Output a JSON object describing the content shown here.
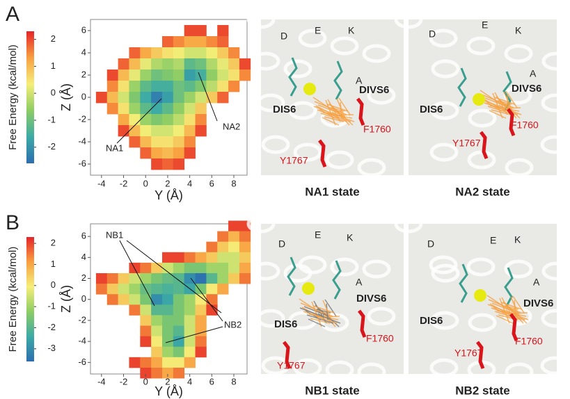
{
  "panels": [
    {
      "label": "A",
      "colorbar": {
        "title": "Free Energy (kcal/mol)",
        "clim": [
          -2.6,
          2.3
        ],
        "ticks": [
          2,
          1,
          0,
          -1,
          -2
        ]
      },
      "plot": {
        "xlabel": "Y (Å)",
        "ylabel": "Z (Å)",
        "xlim": [
          -5,
          9.2
        ],
        "ylim": [
          -7,
          7
        ],
        "xticks": [
          -4,
          -2,
          0,
          2,
          4,
          6,
          8
        ],
        "yticks": [
          -6,
          -4,
          -2,
          0,
          2,
          4,
          6
        ],
        "y_centers": [
          -4,
          -3,
          -2,
          -1,
          0,
          1,
          2,
          3,
          4,
          5,
          6,
          7,
          8,
          9
        ],
        "z_centers": [
          6,
          5,
          4,
          3,
          2,
          1,
          0,
          -1,
          -2,
          -3,
          -4,
          -5,
          -6
        ],
        "values": [
          [
            null,
            null,
            null,
            null,
            null,
            null,
            null,
            null,
            2,
            2,
            null,
            2,
            null,
            null
          ],
          [
            null,
            null,
            null,
            null,
            null,
            null,
            1.8,
            1.5,
            1.2,
            1.2,
            1.5,
            1.8,
            null,
            null
          ],
          [
            null,
            null,
            null,
            1.8,
            1.2,
            0.8,
            0.5,
            0.3,
            0,
            0,
            0.3,
            0.8,
            1.5,
            null
          ],
          [
            null,
            null,
            1.8,
            1,
            0.2,
            -0.3,
            -0.5,
            -0.3,
            -1.2,
            -1,
            -0.3,
            0.2,
            0.8,
            2
          ],
          [
            null,
            2,
            1,
            0.2,
            -0.5,
            -1,
            -0.8,
            -0.6,
            -1.8,
            -1.5,
            -0.6,
            0,
            0.5,
            1.5
          ],
          [
            null,
            1.5,
            0.5,
            -0.5,
            -1.2,
            -1.5,
            -1.5,
            -1,
            -1.2,
            -0.8,
            -0.2,
            0.5,
            1.5,
            null
          ],
          [
            2,
            1,
            0,
            -0.8,
            -1.6,
            -2.3,
            -1.8,
            -1,
            -0.5,
            0,
            0.8,
            1.8,
            null,
            null
          ],
          [
            null,
            1.5,
            0.5,
            -0.5,
            -1.2,
            -1.6,
            -1.2,
            -0.6,
            0,
            0.8,
            null,
            null,
            null,
            null
          ],
          [
            null,
            null,
            1.2,
            0.3,
            -0.5,
            -0.8,
            -0.6,
            -0.2,
            0.5,
            1.5,
            null,
            null,
            null,
            null
          ],
          [
            null,
            null,
            2,
            1,
            0.3,
            0,
            0,
            0.3,
            1,
            2,
            null,
            null,
            null,
            null
          ],
          [
            null,
            null,
            null,
            1.8,
            1,
            0.5,
            0.5,
            0.8,
            1.5,
            null,
            null,
            null,
            null,
            null
          ],
          [
            null,
            null,
            null,
            null,
            1.8,
            1.2,
            1,
            1.3,
            2,
            null,
            null,
            null,
            null,
            null
          ],
          [
            null,
            null,
            null,
            null,
            null,
            2,
            1.8,
            2,
            null,
            null,
            null,
            null,
            null,
            null
          ]
        ],
        "annotations": [
          "NA1",
          "NA2"
        ]
      },
      "states": [
        {
          "title": "NA1 state",
          "labels": [
            "D",
            "E",
            "K",
            "A",
            "DIS6",
            "DIVS6",
            "F1760",
            "Y1767"
          ]
        },
        {
          "title": "NA2 state",
          "labels": [
            "D",
            "E",
            "K",
            "A",
            "DIS6",
            "DIVS6",
            "F1760",
            "Y1767"
          ]
        }
      ]
    },
    {
      "label": "B",
      "colorbar": {
        "title": "Free Energy (kcal/mol)",
        "clim": [
          -3.6,
          2.3
        ],
        "ticks": [
          2,
          1,
          0,
          -1,
          -2,
          -3
        ]
      },
      "plot": {
        "xlabel": "Y (Å)",
        "ylabel": "Z (Å)",
        "xlim": [
          -5,
          9.2
        ],
        "ylim": [
          -7.1,
          7.2
        ],
        "xticks": [
          -4,
          -2,
          0,
          2,
          4,
          6,
          8
        ],
        "yticks": [
          -6,
          -4,
          -2,
          0,
          2,
          4,
          6
        ],
        "y_centers": [
          -4,
          -3,
          -2,
          -1,
          0,
          1,
          2,
          3,
          4,
          5,
          6,
          7,
          8,
          9
        ],
        "z_centers": [
          7,
          6,
          5,
          4,
          3,
          2,
          1,
          0,
          -1,
          -2,
          -3,
          -4,
          -5,
          -6,
          -7
        ],
        "values": [
          [
            null,
            null,
            null,
            null,
            null,
            null,
            null,
            null,
            null,
            null,
            null,
            null,
            2,
            2
          ],
          [
            null,
            null,
            null,
            null,
            null,
            null,
            null,
            null,
            null,
            null,
            null,
            1.5,
            0.8,
            1.5
          ],
          [
            null,
            null,
            null,
            null,
            null,
            null,
            null,
            null,
            null,
            null,
            1.5,
            0.5,
            0,
            1
          ],
          [
            null,
            null,
            null,
            null,
            null,
            null,
            2,
            2,
            1.5,
            1,
            0.5,
            -0.5,
            -0.5,
            0.5
          ],
          [
            null,
            null,
            null,
            2,
            1.5,
            0.5,
            -0.5,
            -1,
            -1.5,
            -1.5,
            -1,
            -1,
            -0.5,
            1
          ],
          [
            2,
            1.5,
            0.5,
            -0.5,
            -1,
            -1.5,
            -1.8,
            -2,
            -3,
            -3.5,
            -2,
            -1,
            0.5,
            1.5
          ],
          [
            1.5,
            0.5,
            -0.5,
            -1,
            -1.8,
            -2,
            -2.2,
            -2,
            -2.5,
            -1.5,
            0,
            1,
            null,
            null
          ],
          [
            null,
            1.5,
            0.5,
            -0.5,
            -1.5,
            -3,
            -2.5,
            -1.5,
            -1,
            0,
            1.5,
            null,
            null,
            null
          ],
          [
            null,
            null,
            null,
            1.5,
            -0.5,
            -2,
            -2,
            -1.5,
            -1,
            0.5,
            2,
            null,
            null,
            null
          ],
          [
            null,
            null,
            null,
            null,
            0.5,
            -1,
            -1.5,
            -1.5,
            -0.5,
            1,
            null,
            null,
            null,
            null
          ],
          [
            null,
            null,
            null,
            null,
            1.5,
            -0.5,
            -1.5,
            -2,
            -0.5,
            1,
            null,
            null,
            null,
            null
          ],
          [
            null,
            null,
            null,
            null,
            2,
            0,
            -1.5,
            -2.5,
            -0.5,
            1.5,
            null,
            null,
            null,
            null
          ],
          [
            null,
            null,
            null,
            null,
            null,
            0.5,
            -1,
            -1.5,
            0,
            2,
            null,
            null,
            null,
            null
          ],
          [
            null,
            null,
            null,
            2,
            1.5,
            1,
            0,
            0,
            1,
            null,
            null,
            null,
            null,
            null
          ],
          [
            null,
            null,
            null,
            null,
            2,
            1.5,
            1,
            1.5,
            null,
            null,
            null,
            null,
            null,
            null
          ]
        ],
        "annotations": [
          "NB1",
          "NB2"
        ]
      },
      "states": [
        {
          "title": "NB1 state",
          "labels": [
            "D",
            "E",
            "K",
            "A",
            "DIS6",
            "DIVS6",
            "F1760",
            "Y1767"
          ]
        },
        {
          "title": "NB2 state",
          "labels": [
            "D",
            "E",
            "K",
            "A",
            "DIS6",
            "DIVS6",
            "F1760",
            "Y1767"
          ]
        }
      ]
    }
  ]
}
